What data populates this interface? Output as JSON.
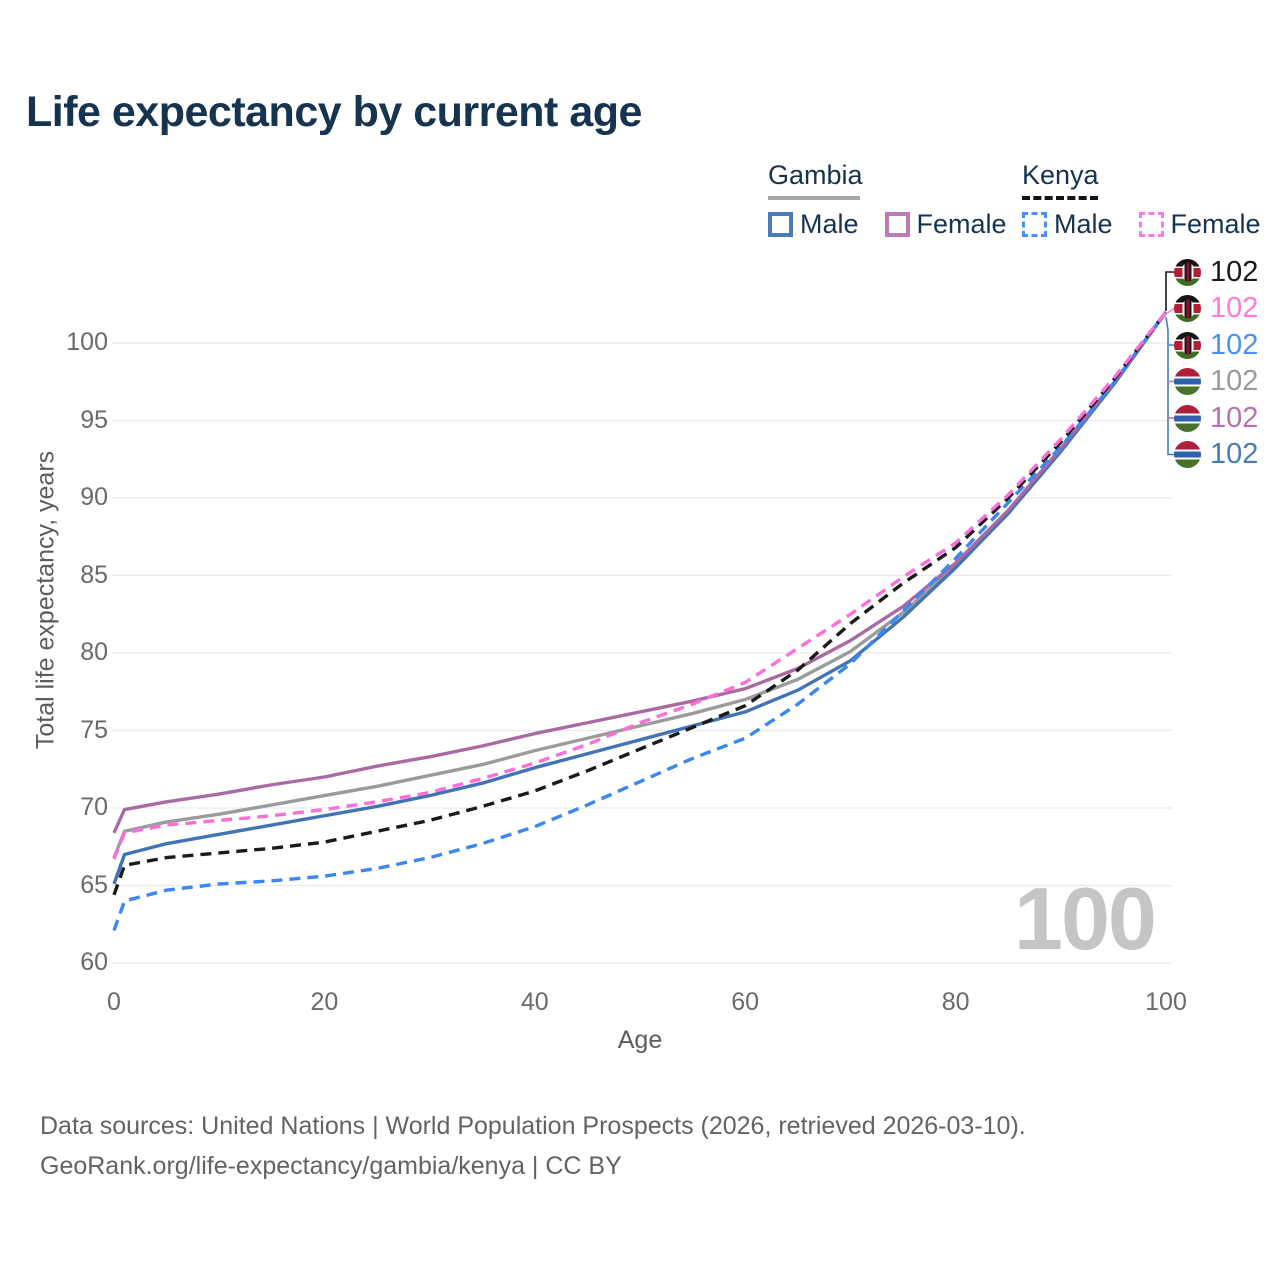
{
  "title": "Life expectancy by current age",
  "watermark": "100",
  "footer": {
    "line1": "Data sources: United Nations | World Population Prospects (2026, retrieved 2026-03-10).",
    "line2": "GeoRank.org/life-expectancy/gambia/kenya | CC BY"
  },
  "legend": {
    "groups": [
      {
        "label": "Gambia",
        "line_style": "solid",
        "underline_color": "#a6a6a6",
        "items": [
          {
            "label": "Male",
            "color": "#4a7ab7"
          },
          {
            "label": "Female",
            "color": "#bc7ab8"
          }
        ]
      },
      {
        "label": "Kenya",
        "line_style": "dashed",
        "underline_color": "#141414",
        "items": [
          {
            "label": "Male",
            "color": "#4a8ef5"
          },
          {
            "label": "Female",
            "color": "#ff7ad8"
          }
        ]
      }
    ]
  },
  "end_labels": [
    {
      "series": "Kenya All",
      "flag": "kenya",
      "value": "102",
      "color": "#1a1a1a"
    },
    {
      "series": "Kenya Female",
      "flag": "kenya",
      "value": "102",
      "color": "#ff7ad8"
    },
    {
      "series": "Kenya Male",
      "flag": "kenya",
      "value": "102",
      "color": "#4a8ef5"
    },
    {
      "series": "Gambia All",
      "flag": "gambia",
      "value": "102",
      "color": "#9b9b9b"
    },
    {
      "series": "Gambia Female",
      "flag": "gambia",
      "value": "102",
      "color": "#b473ae"
    },
    {
      "series": "Gambia Male",
      "flag": "gambia",
      "value": "102",
      "color": "#4a7ab7"
    }
  ],
  "chart_data": {
    "type": "line",
    "title": "Life expectancy by current age",
    "xlabel": "Age",
    "ylabel": "Total life expectancy, years",
    "x_ticks": [
      0,
      20,
      40,
      60,
      80,
      100
    ],
    "y_ticks": [
      60,
      65,
      70,
      75,
      80,
      85,
      90,
      95,
      100
    ],
    "xlim": [
      0,
      100
    ],
    "ylim": [
      58,
      103
    ],
    "grid": "horizontal-only",
    "legend_position": "top-right",
    "x": [
      0,
      1,
      5,
      10,
      15,
      20,
      25,
      30,
      35,
      40,
      45,
      50,
      55,
      60,
      65,
      70,
      75,
      80,
      85,
      90,
      95,
      100
    ],
    "series": [
      {
        "name": "Gambia All",
        "country": "Gambia",
        "sex": "Both",
        "color": "#9b9b9b",
        "dash": "solid",
        "values": [
          66.8,
          68.5,
          69.1,
          69.6,
          70.2,
          70.8,
          71.4,
          72.1,
          72.8,
          73.7,
          74.5,
          75.3,
          76.1,
          77.0,
          78.3,
          80.1,
          82.6,
          85.6,
          89.1,
          93.1,
          97.3,
          102
        ]
      },
      {
        "name": "Gambia Male",
        "country": "Gambia",
        "sex": "Male",
        "color": "#4273b4",
        "dash": "solid",
        "values": [
          65.1,
          67.0,
          67.7,
          68.3,
          68.9,
          69.5,
          70.1,
          70.8,
          71.6,
          72.6,
          73.5,
          74.4,
          75.3,
          76.2,
          77.6,
          79.5,
          82.3,
          85.5,
          89.0,
          93.0,
          97.3,
          102
        ]
      },
      {
        "name": "Gambia Female",
        "country": "Gambia",
        "sex": "Female",
        "color": "#a96aa4",
        "dash": "solid",
        "values": [
          68.4,
          69.9,
          70.4,
          70.9,
          71.5,
          72.0,
          72.7,
          73.3,
          74.0,
          74.8,
          75.5,
          76.2,
          76.9,
          77.7,
          79.0,
          80.8,
          83.0,
          85.8,
          89.2,
          93.2,
          97.4,
          102
        ]
      },
      {
        "name": "Kenya Male",
        "country": "Kenya",
        "sex": "Male",
        "color": "#3b86f0",
        "dash": "dashed",
        "values": [
          62.1,
          64.0,
          64.7,
          65.1,
          65.3,
          65.6,
          66.1,
          66.8,
          67.7,
          68.8,
          70.2,
          71.7,
          73.2,
          74.5,
          76.7,
          79.3,
          82.7,
          86.1,
          89.7,
          93.3,
          97.4,
          102
        ]
      },
      {
        "name": "Kenya All",
        "country": "Kenya",
        "sex": "Both",
        "color": "#1a1a1a",
        "dash": "dashed",
        "values": [
          64.4,
          66.3,
          66.8,
          67.1,
          67.4,
          67.8,
          68.5,
          69.2,
          70.1,
          71.1,
          72.4,
          73.8,
          75.2,
          76.6,
          78.9,
          81.9,
          84.5,
          86.8,
          90.0,
          93.6,
          97.6,
          102
        ]
      },
      {
        "name": "Kenya Female",
        "country": "Kenya",
        "sex": "Female",
        "color": "#fb6fd8",
        "dash": "dashed",
        "values": [
          66.7,
          68.4,
          68.9,
          69.2,
          69.5,
          69.9,
          70.4,
          71.0,
          71.9,
          72.9,
          74.1,
          75.5,
          76.7,
          78.1,
          80.3,
          82.5,
          84.9,
          87.1,
          90.2,
          93.8,
          97.7,
          102
        ]
      }
    ]
  }
}
